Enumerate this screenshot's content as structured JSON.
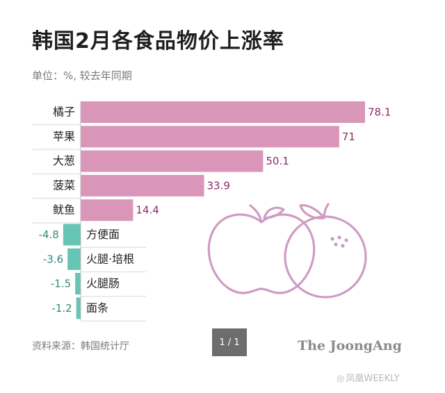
{
  "header": {
    "title": "韩国2月各食品物价上涨率",
    "subtitle": "单位：%, 较去年同期"
  },
  "footer": {
    "source": "资料来源：韩国统计厅",
    "pager": "1 / 1",
    "brand": "The JoongAng",
    "watermark_icon": "camera-icon",
    "watermark_text": "凤凰WEEKLY"
  },
  "colors": {
    "positive": "#d996b9",
    "negative": "#66c5b5",
    "positive_label": "#8c2a6a",
    "negative_label": "#2f8a7d",
    "illustration": "#cf9bc4"
  },
  "chart_data": {
    "type": "bar",
    "orientation": "horizontal",
    "categories": [
      "橘子",
      "苹果",
      "大葱",
      "菠菜",
      "鱿鱼",
      "方便面",
      "火腿·培根",
      "火腿肠",
      "面条"
    ],
    "values": [
      78.1,
      71,
      50.1,
      33.9,
      14.4,
      -4.8,
      -3.6,
      -1.5,
      -1.2
    ],
    "value_labels": [
      "78.1",
      "71",
      "50.1",
      "33.9",
      "14.4",
      "-4.8",
      "-3.6",
      "-1.5",
      "-1.2"
    ],
    "title": "韩国2月各食品物价上涨率",
    "subtitle": "单位：%, 较去年同期",
    "xlim": [
      -6.5,
      78.1
    ],
    "grid": false,
    "legend": "none"
  }
}
